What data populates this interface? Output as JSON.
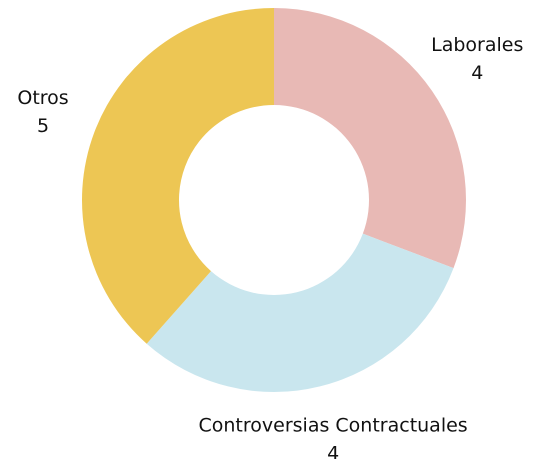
{
  "chart_data": {
    "type": "donut",
    "categories": [
      "Laborales",
      "Controversias Contractuales",
      "Otros"
    ],
    "values": [
      4,
      4,
      5
    ],
    "colors": [
      "#e8b9b5",
      "#c9e6ee",
      "#edc654"
    ]
  }
}
